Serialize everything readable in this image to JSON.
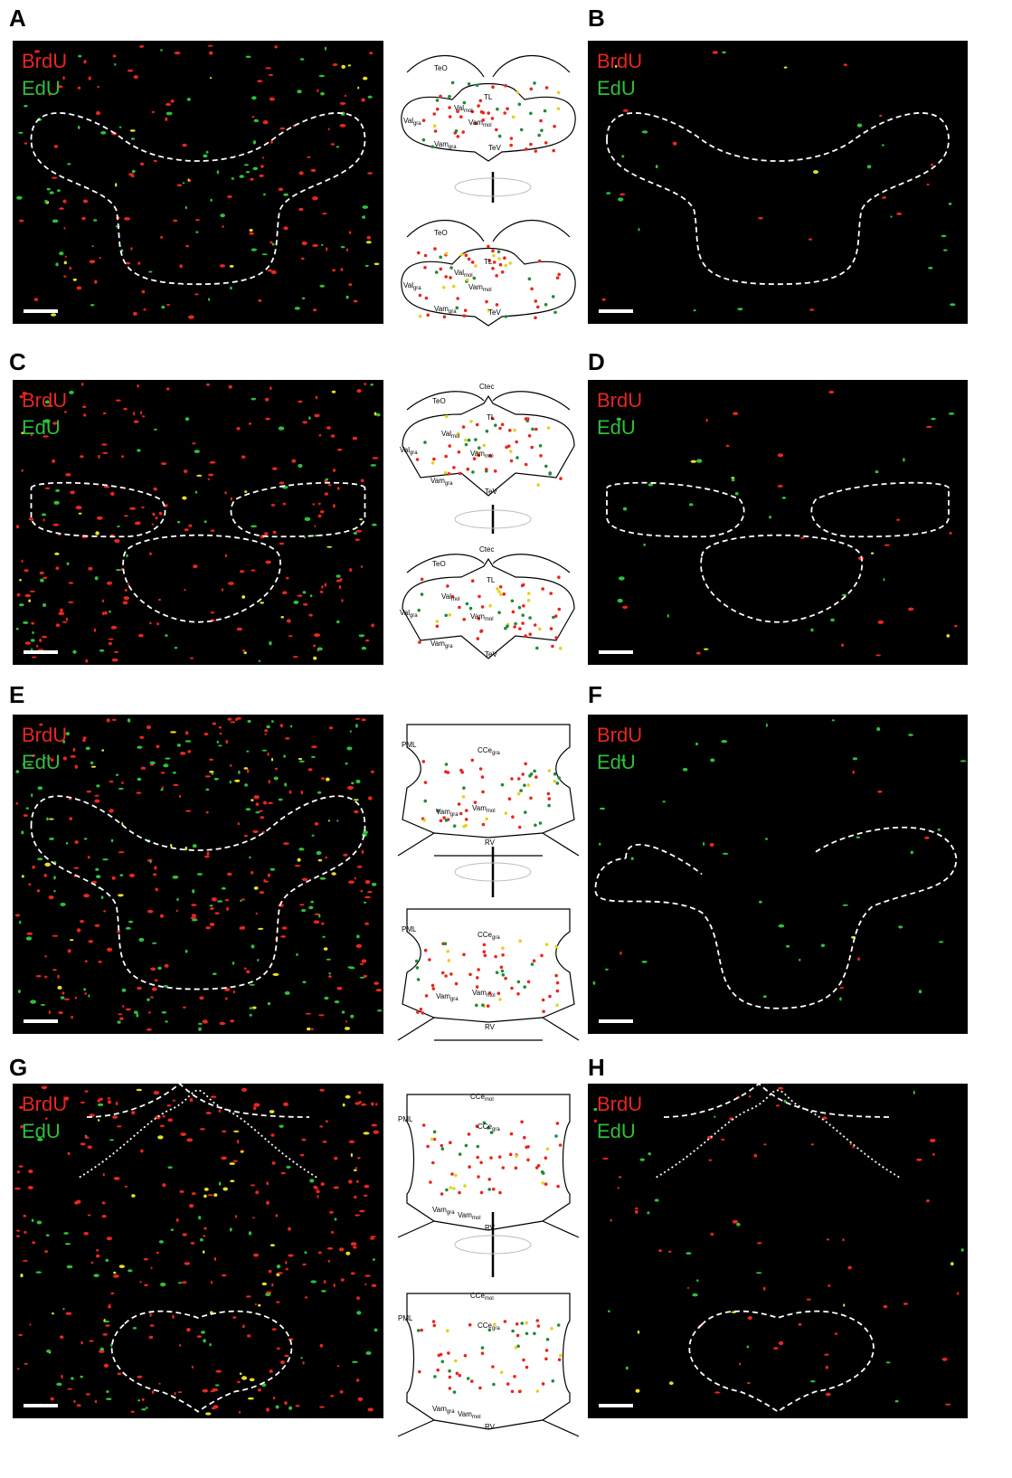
{
  "panels": [
    {
      "letter": "A",
      "labels": [
        "BrdU",
        "EdU"
      ]
    },
    {
      "letter": "B",
      "labels": [
        "BrdU",
        "EdU"
      ]
    },
    {
      "letter": "C",
      "labels": [
        "BrdU",
        "EdU"
      ]
    },
    {
      "letter": "D",
      "labels": [
        "BrdU",
        "EdU"
      ]
    },
    {
      "letter": "E",
      "labels": [
        "BrdU",
        "EdU"
      ]
    },
    {
      "letter": "F",
      "labels": [
        "BrdU",
        "EdU"
      ]
    },
    {
      "letter": "G",
      "labels": [
        "BrdU",
        "EdU"
      ]
    },
    {
      "letter": "H",
      "labels": [
        "BrdU",
        "EdU"
      ]
    }
  ],
  "diagrams": [
    {
      "top": [
        {
          "text": "TeO"
        },
        {
          "text": "TL"
        },
        {
          "text": "Val",
          "sub": "mol"
        },
        {
          "text": "Val",
          "sub": "gra"
        },
        {
          "text": "Vam",
          "sub": "mol"
        },
        {
          "text": "Vam",
          "sub": "gra"
        },
        {
          "text": "TeV"
        }
      ],
      "bottom": [
        {
          "text": "TeO"
        },
        {
          "text": "TL"
        },
        {
          "text": "Val",
          "sub": "mol"
        },
        {
          "text": "Val",
          "sub": "gra"
        },
        {
          "text": "Vam",
          "sub": "mol"
        },
        {
          "text": "Vam",
          "sub": "gra"
        },
        {
          "text": "TeV"
        }
      ]
    },
    {
      "top": [
        {
          "text": "Ctec"
        },
        {
          "text": "TeO"
        },
        {
          "text": "TL"
        },
        {
          "text": "Val",
          "sub": "mol"
        },
        {
          "text": "Val",
          "sub": "gra"
        },
        {
          "text": "Vam",
          "sub": "mol"
        },
        {
          "text": "Vam",
          "sub": "gra"
        },
        {
          "text": "TeV"
        }
      ],
      "bottom": [
        {
          "text": "Ctec"
        },
        {
          "text": "TeO"
        },
        {
          "text": "TL"
        },
        {
          "text": "Val",
          "sub": "mol"
        },
        {
          "text": "Val",
          "sub": "gra"
        },
        {
          "text": "Vam",
          "sub": "mol"
        },
        {
          "text": "Vam",
          "sub": "gra"
        },
        {
          "text": "TeV"
        }
      ]
    },
    {
      "top": [
        {
          "text": "PML"
        },
        {
          "text": "CCe",
          "sub": "gra"
        },
        {
          "text": "Vam",
          "sub": "gra"
        },
        {
          "text": "Vam",
          "sub": "mol"
        },
        {
          "text": "RV"
        }
      ],
      "bottom": [
        {
          "text": "PML"
        },
        {
          "text": "CCe",
          "sub": "gra"
        },
        {
          "text": "Vam",
          "sub": "gra"
        },
        {
          "text": "Vam",
          "sub": "mol"
        },
        {
          "text": "RV"
        }
      ]
    },
    {
      "top": [
        {
          "text": "CCe",
          "sub": "mol"
        },
        {
          "text": "PML"
        },
        {
          "text": "CCe",
          "sub": "gra"
        },
        {
          "text": "Vam",
          "sub": "gra"
        },
        {
          "text": "Vam",
          "sub": "mol"
        },
        {
          "text": "RV"
        }
      ],
      "bottom": [
        {
          "text": "CCe",
          "sub": "mol"
        },
        {
          "text": "PML"
        },
        {
          "text": "CCe",
          "sub": "gra"
        },
        {
          "text": "Vam",
          "sub": "gra"
        },
        {
          "text": "Vam",
          "sub": "mol"
        },
        {
          "text": "RV"
        }
      ]
    }
  ]
}
